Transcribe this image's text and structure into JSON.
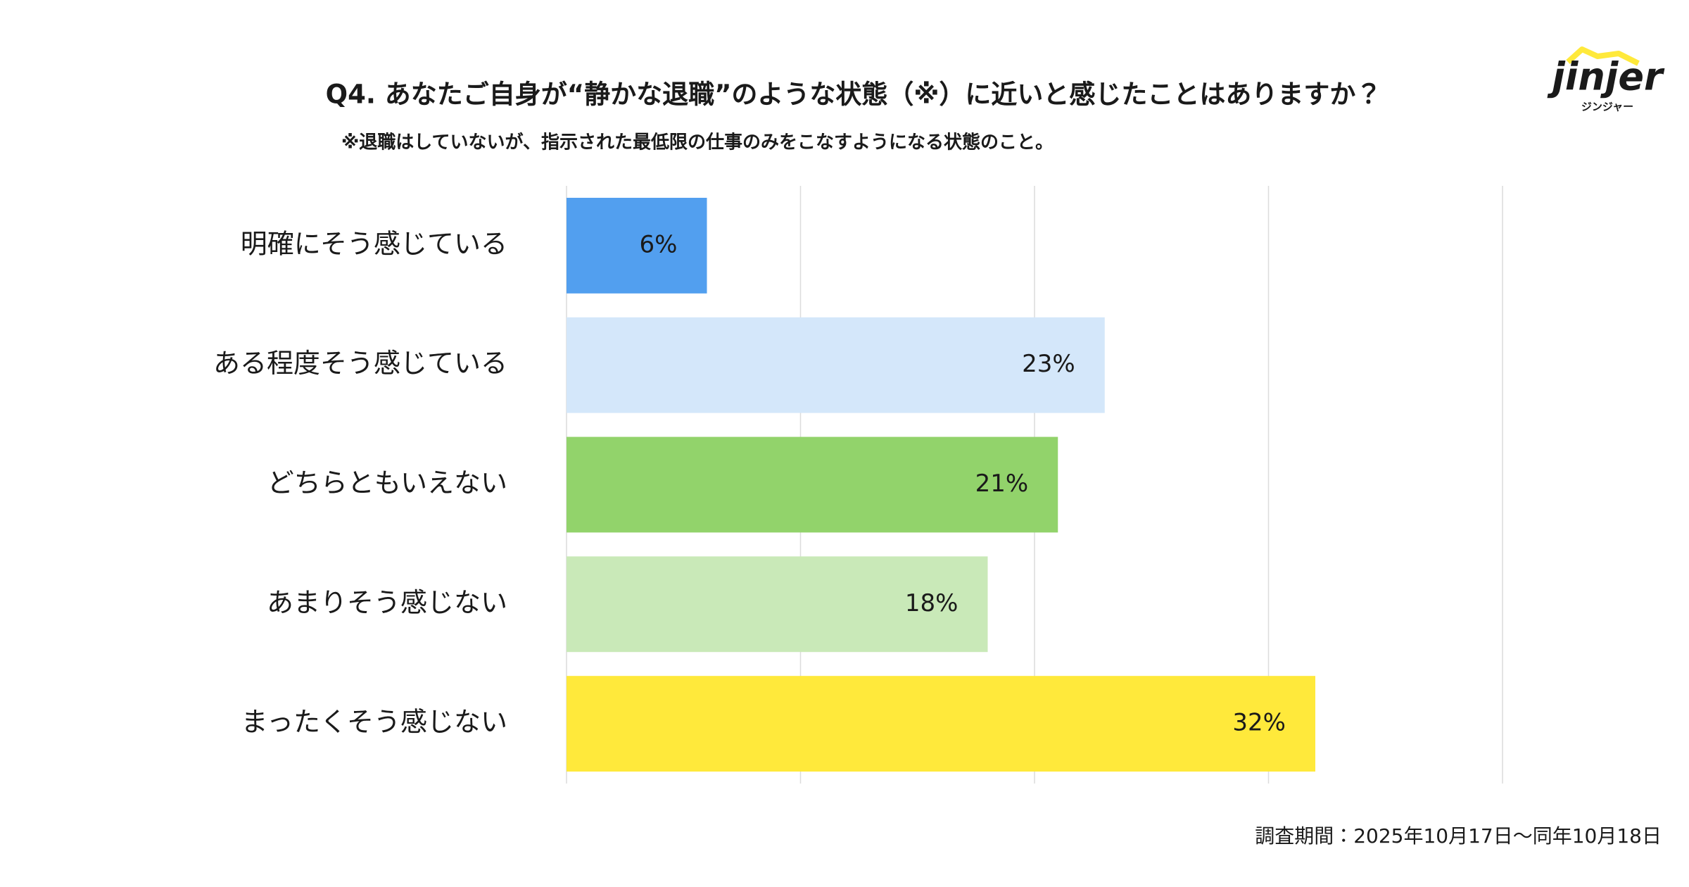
{
  "chart_data": {
    "type": "hbar",
    "title": "Q4. あなたご自身が“静かな退職”のような状態（※）に近いと感じたことはありますか？",
    "subtitle": "※退職はしていないが、指示された最低限の仕事のみをこなすようになる状態のこと。",
    "source": "調査期間：2025年10月17日〜同年10月18日",
    "categories": [
      "明確にそう感じている",
      "ある程度そう感じている",
      "どちらともいえない",
      "あまりそう感じない",
      "まったくそう感じない"
    ],
    "values": [
      6,
      23,
      21,
      18,
      32
    ],
    "value_labels": [
      "6%",
      "23%",
      "21%",
      "18%",
      "32%"
    ],
    "colors": [
      "#529FEF",
      "#D4E7FA",
      "#92D36B",
      "#C9E9B8",
      "#FFE93B"
    ],
    "xlim": [
      0,
      40
    ],
    "xticks": [
      0,
      10,
      20,
      30,
      40
    ],
    "grid": true
  },
  "logo": {
    "name": "jinjer",
    "sub": "ジンジャー"
  }
}
